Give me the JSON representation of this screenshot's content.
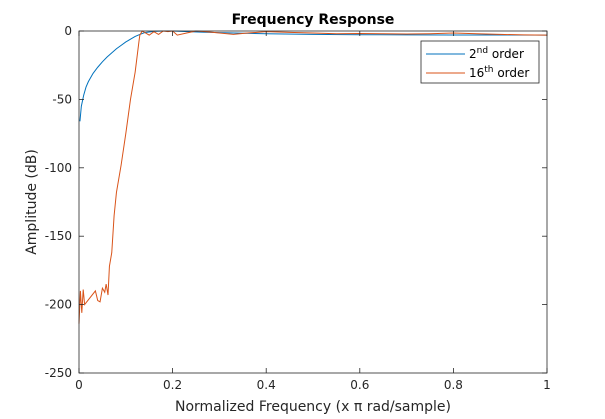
{
  "chart_data": {
    "type": "line",
    "title": "Frequency Response",
    "xlabel": "Normalized Frequency (x π rad/sample)",
    "ylabel": "Amplitude (dB)",
    "xlim": [
      0,
      1
    ],
    "ylim": [
      -250,
      0
    ],
    "x_ticks": [
      0,
      0.2,
      0.4,
      0.6,
      0.8,
      1
    ],
    "x_tick_labels": [
      "0",
      "0.2",
      "0.4",
      "0.6",
      "0.8",
      "1"
    ],
    "y_ticks": [
      0,
      -50,
      -100,
      -150,
      -200,
      -250
    ],
    "y_tick_labels": [
      "0",
      "-50",
      "-100",
      "-150",
      "-200",
      "-250"
    ],
    "grid": false,
    "legend_position": "top-right",
    "series": [
      {
        "name": "2nd order",
        "name_base": "2",
        "name_sup": "nd",
        "name_suffix": " order",
        "color": "#0072BD",
        "x": [
          0.002,
          0.005,
          0.01,
          0.015,
          0.02,
          0.03,
          0.04,
          0.05,
          0.06,
          0.07,
          0.08,
          0.09,
          0.1,
          0.11,
          0.12,
          0.13,
          0.14,
          0.16,
          0.18,
          0.2,
          0.22,
          0.26,
          0.3,
          0.4,
          0.5,
          0.6,
          0.7,
          0.8,
          0.9,
          1.0
        ],
        "y": [
          -66,
          -55,
          -47,
          -41,
          -37,
          -31,
          -26.5,
          -22.5,
          -19,
          -16,
          -13,
          -10.5,
          -8,
          -6,
          -4,
          -2.5,
          -1.2,
          -0.3,
          0,
          0,
          -0.3,
          -0.8,
          -1.2,
          -2,
          -2.5,
          -2.7,
          -2.8,
          -2.9,
          -2.9,
          -3
        ]
      },
      {
        "name": "16th order",
        "name_base": "16",
        "name_sup": "th",
        "name_suffix": " order",
        "color": "#D95319",
        "x": [
          0.0,
          0.003,
          0.006,
          0.009,
          0.012,
          0.035,
          0.04,
          0.045,
          0.05,
          0.055,
          0.058,
          0.062,
          0.065,
          0.07,
          0.075,
          0.08,
          0.09,
          0.1,
          0.11,
          0.12,
          0.128,
          0.13,
          0.135,
          0.14,
          0.15,
          0.16,
          0.17,
          0.18,
          0.19,
          0.2,
          0.21,
          0.23,
          0.25,
          0.27,
          0.3,
          0.33,
          0.36,
          0.4,
          0.45,
          0.5,
          0.55,
          0.6,
          0.65,
          0.7,
          0.75,
          0.8,
          0.85,
          0.9,
          0.95,
          1.0
        ],
        "y": [
          -214,
          -190,
          -206,
          -189,
          -200,
          -190,
          -197,
          -198,
          -188,
          -191,
          -185,
          -193,
          -172,
          -162,
          -135,
          -118,
          -98,
          -75,
          -50,
          -30,
          -8,
          -3,
          0,
          -1,
          -3,
          -0.5,
          -2.5,
          0,
          -0.5,
          0,
          -3,
          -1.5,
          0,
          -0.5,
          -1.5,
          -2.5,
          -1.5,
          -0.5,
          -1,
          -1.5,
          -2,
          -1.8,
          -2,
          -2.2,
          -2,
          -1.5,
          -2,
          -2.5,
          -2.8,
          -3
        ]
      }
    ]
  }
}
